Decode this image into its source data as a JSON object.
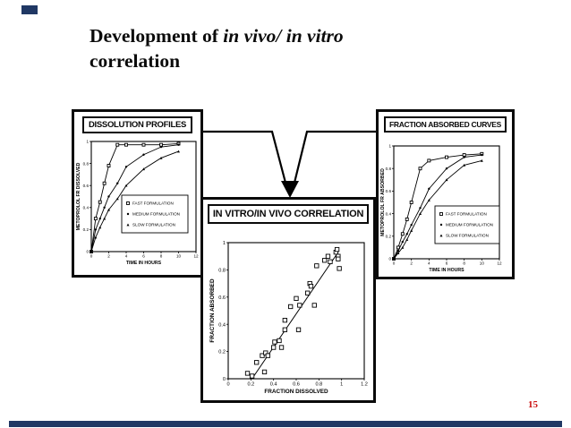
{
  "slide": {
    "title_prefix": "Development of ",
    "title_italic": "in vivo/ in vitro",
    "title_line2": "correlation",
    "page_number": "15",
    "accent_color": "#203864",
    "page_number_color": "#cc1111",
    "ink_color": "#000000",
    "background_color": "#ffffff"
  },
  "chart_data": [
    {
      "id": "dissolution",
      "type": "line",
      "title": "DISSOLUTION PROFILES",
      "xlabel": "TIME IN HOURS",
      "ylabel": "METOPROLOL FR DISSOLVED",
      "xlim": [
        0,
        12
      ],
      "ylim": [
        0,
        1
      ],
      "xticks": [
        0,
        2,
        4,
        6,
        8,
        10,
        12
      ],
      "yticks": [
        0,
        0.2,
        0.4,
        0.6,
        0.8,
        1
      ],
      "grid": false,
      "legend_position": "inside-right-center",
      "legend": [
        "FAST FORMULATION",
        "MEDIUM FORMULATION",
        "SLOW FORMULATION"
      ],
      "x": [
        0,
        0.5,
        1,
        1.5,
        2,
        3,
        4,
        6,
        8,
        10
      ],
      "series": [
        {
          "name": "FAST FORMULATION",
          "marker": "square-open",
          "values": [
            0,
            0.3,
            0.45,
            0.62,
            0.78,
            0.97,
            0.97,
            0.97,
            0.97,
            0.98
          ]
        },
        {
          "name": "MEDIUM FORMULATION",
          "marker": "circle-filled",
          "values": [
            0,
            0.2,
            0.3,
            0.4,
            0.5,
            0.62,
            0.77,
            0.88,
            0.95,
            0.97
          ]
        },
        {
          "name": "SLOW FORMULATION",
          "marker": "triangle-filled",
          "values": [
            0,
            0.13,
            0.22,
            0.3,
            0.38,
            0.48,
            0.6,
            0.75,
            0.85,
            0.91
          ]
        }
      ]
    },
    {
      "id": "correlation",
      "type": "scatter",
      "title": "IN VITRO/IN VIVO CORRELATION",
      "xlabel": "FRACTION DISSOLVED",
      "ylabel": "FRACTION ABSORBED",
      "xlim": [
        0,
        1.2
      ],
      "ylim": [
        0,
        1
      ],
      "xticks": [
        0,
        0.2,
        0.4,
        0.6,
        0.8,
        1,
        1.2
      ],
      "yticks": [
        0,
        0.2,
        0.4,
        0.6,
        0.8,
        1
      ],
      "grid": false,
      "marker": "square-open",
      "points": [
        [
          0.17,
          0.04
        ],
        [
          0.21,
          0.02
        ],
        [
          0.25,
          0.12
        ],
        [
          0.3,
          0.17
        ],
        [
          0.32,
          0.05
        ],
        [
          0.33,
          0.19
        ],
        [
          0.35,
          0.17
        ],
        [
          0.4,
          0.23
        ],
        [
          0.41,
          0.27
        ],
        [
          0.45,
          0.28
        ],
        [
          0.47,
          0.23
        ],
        [
          0.5,
          0.36
        ],
        [
          0.5,
          0.43
        ],
        [
          0.55,
          0.53
        ],
        [
          0.6,
          0.59
        ],
        [
          0.62,
          0.36
        ],
        [
          0.63,
          0.54
        ],
        [
          0.7,
          0.63
        ],
        [
          0.72,
          0.7
        ],
        [
          0.73,
          0.68
        ],
        [
          0.76,
          0.54
        ],
        [
          0.78,
          0.83
        ],
        [
          0.85,
          0.87
        ],
        [
          0.88,
          0.9
        ],
        [
          0.9,
          0.86
        ],
        [
          0.95,
          0.93
        ],
        [
          0.96,
          0.95
        ],
        [
          0.97,
          0.9
        ],
        [
          0.97,
          0.88
        ],
        [
          0.98,
          0.81
        ]
      ],
      "fit_line": {
        "x1": 0.21,
        "y1": 0,
        "x2": 0.97,
        "y2": 0.93
      }
    },
    {
      "id": "absorbed",
      "type": "line",
      "title": "FRACTION ABSORBED CURVES",
      "xlabel": "TIME IN HOURS",
      "ylabel": "METOPROLOL FR ABSORBED",
      "xlim": [
        0,
        12
      ],
      "ylim": [
        0,
        1
      ],
      "xticks": [
        0,
        2,
        4,
        6,
        8,
        10,
        12
      ],
      "yticks": [
        0,
        0.2,
        0.4,
        0.6,
        0.8,
        1
      ],
      "grid": false,
      "legend_position": "inside-right-center",
      "legend": [
        "FAST FORMULATION",
        "MEDIUM FORMULATION",
        "SLOW FORMULATION"
      ],
      "x": [
        0,
        0.5,
        1,
        1.5,
        2,
        3,
        4,
        6,
        8,
        10
      ],
      "series": [
        {
          "name": "FAST FORMULATION",
          "marker": "square-open",
          "values": [
            0,
            0.1,
            0.22,
            0.35,
            0.5,
            0.8,
            0.87,
            0.9,
            0.92,
            0.93
          ]
        },
        {
          "name": "MEDIUM FORMULATION",
          "marker": "circle-filled",
          "values": [
            0,
            0.07,
            0.15,
            0.22,
            0.3,
            0.45,
            0.62,
            0.8,
            0.9,
            0.92
          ]
        },
        {
          "name": "SLOW FORMULATION",
          "marker": "triangle-filled",
          "values": [
            0,
            0.05,
            0.1,
            0.17,
            0.25,
            0.4,
            0.52,
            0.7,
            0.83,
            0.87
          ]
        }
      ]
    }
  ]
}
